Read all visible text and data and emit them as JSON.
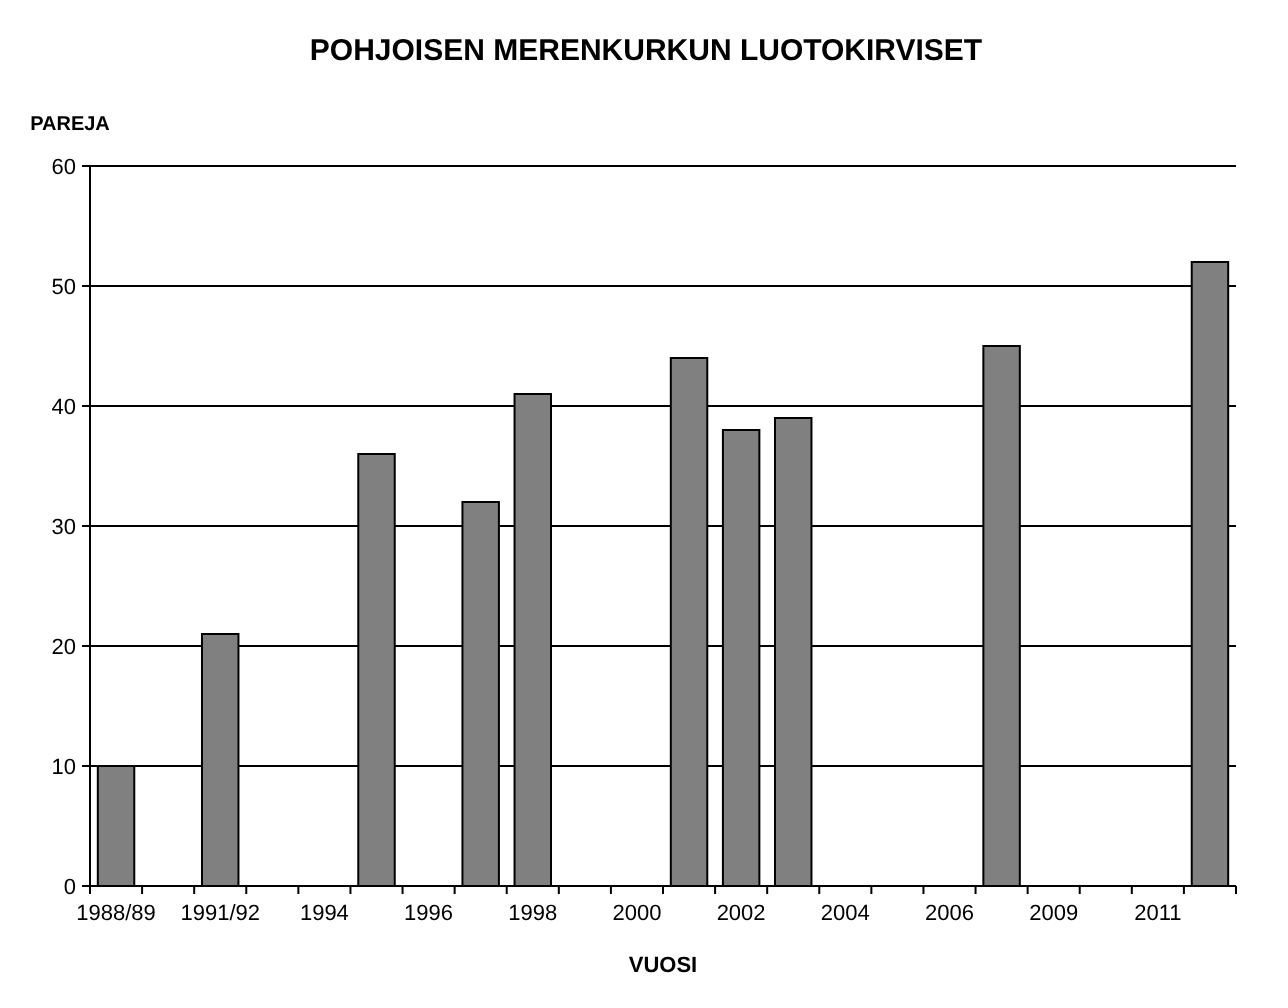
{
  "chart_data": {
    "type": "bar",
    "title": "POHJOISEN MERENKURKUN LUOTOKIRVISET",
    "xlabel": "VUOSI",
    "ylabel": "PAREJA",
    "categories": [
      "1988/89",
      null,
      "1991/92",
      null,
      "1994",
      null,
      "1996",
      null,
      "1998",
      null,
      "2000",
      null,
      "2002",
      null,
      "2004",
      null,
      "2006",
      null,
      "2009",
      null,
      "2011",
      null
    ],
    "values": [
      10,
      null,
      21,
      null,
      null,
      36,
      null,
      32,
      41,
      null,
      null,
      44,
      38,
      39,
      null,
      null,
      null,
      45,
      null,
      null,
      null,
      52
    ],
    "color": "#808080",
    "ylim": [
      0,
      60
    ],
    "yticks": [
      0,
      10,
      20,
      30,
      40,
      50,
      60
    ],
    "grid": "y"
  }
}
